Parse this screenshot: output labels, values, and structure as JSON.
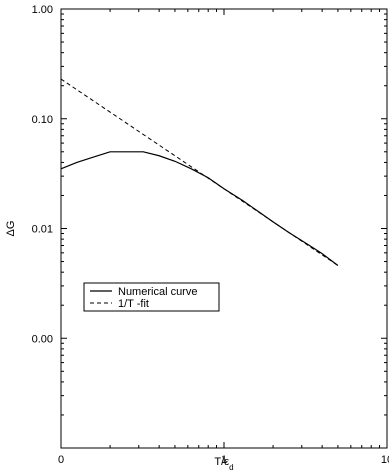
{
  "chart_data": {
    "type": "line",
    "xlabel": "T/ε",
    "xlabel_sub": "d",
    "ylabel": "ΔG",
    "x_scale": "log",
    "y_scale": "log",
    "xlim": [
      0.1,
      10
    ],
    "ylim": [
      0.0001,
      1
    ],
    "x_ticks": [
      {
        "value": 0.1,
        "label": "0"
      },
      {
        "value": 1,
        "label": "1"
      },
      {
        "value": 10,
        "label": "10"
      }
    ],
    "y_ticks": [
      {
        "value": 1,
        "label": "1.00"
      },
      {
        "value": 0.1,
        "label": "0.10"
      },
      {
        "value": 0.01,
        "label": "0.01"
      },
      {
        "value": 0.001,
        "label": "0.00"
      },
      {
        "value": 0.0001,
        "label": ""
      }
    ],
    "legend_position": "center-left",
    "series": [
      {
        "name": "Numerical curve",
        "style": "solid",
        "x": [
          0.1,
          0.125,
          0.16,
          0.2,
          0.25,
          0.32,
          0.4,
          0.5,
          0.63,
          0.8,
          1.0,
          1.3,
          1.6,
          2.0,
          2.5,
          3.2,
          4.0,
          5.0
        ],
        "y": [
          0.035,
          0.04,
          0.045,
          0.05,
          0.05,
          0.05,
          0.046,
          0.041,
          0.035,
          0.029,
          0.023,
          0.018,
          0.0145,
          0.0115,
          0.0092,
          0.0073,
          0.0059,
          0.0046
        ]
      },
      {
        "name": "1/T -fit",
        "style": "dashed",
        "x": [
          0.1,
          5.0
        ],
        "y": [
          0.23,
          0.0046
        ]
      }
    ]
  }
}
